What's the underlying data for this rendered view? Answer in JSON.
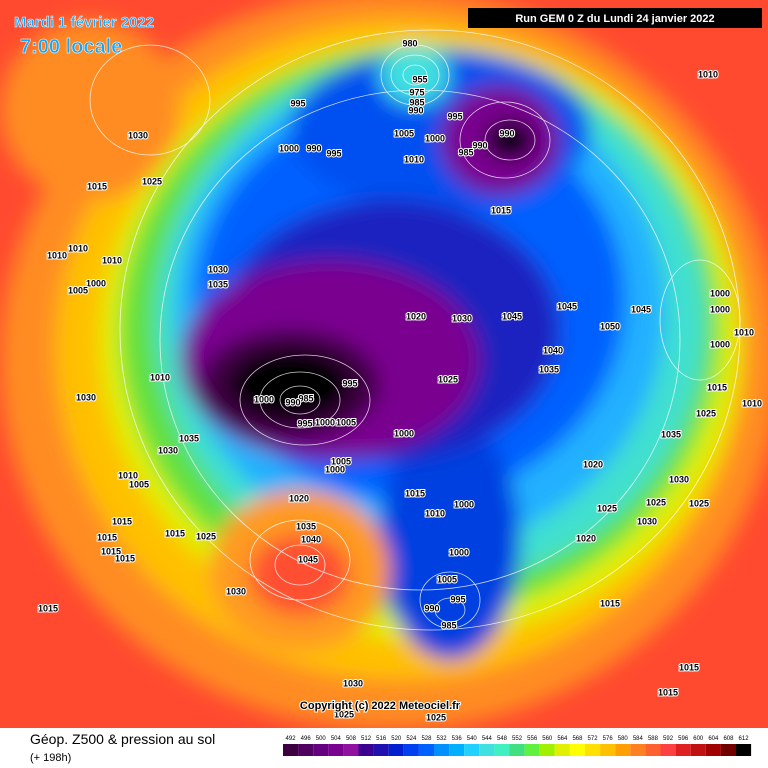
{
  "header": {
    "date": "Mardi 1 février 2022",
    "time": "7:00 locale",
    "run": "Run GEM 0 Z du Lundi 24 janvier 2022"
  },
  "copyright": "Copyright (c) 2022 Meteociel.fr",
  "footer": {
    "title": "Géop. Z500 & pression au sol",
    "lead": "(+ 198h)"
  },
  "legend": {
    "values": [
      492,
      496,
      500,
      504,
      508,
      512,
      516,
      520,
      524,
      528,
      532,
      536,
      540,
      544,
      548,
      552,
      556,
      560,
      564,
      568,
      572,
      576,
      580,
      584,
      588,
      592,
      596,
      600,
      604,
      608,
      612
    ],
    "colors": [
      "#3c0040",
      "#500060",
      "#640080",
      "#7a0090",
      "#9010a0",
      "#3a0090",
      "#2010b0",
      "#0020d0",
      "#0040f0",
      "#0060ff",
      "#0090ff",
      "#00b0ff",
      "#20d0ff",
      "#40e0e0",
      "#40f0c0",
      "#40e080",
      "#60f040",
      "#a0f000",
      "#e0f000",
      "#ffff00",
      "#ffe000",
      "#ffc000",
      "#ffa000",
      "#ff8020",
      "#ff6030",
      "#ff4040",
      "#e02020",
      "#c01010",
      "#a00000",
      "#700000",
      "#000000"
    ]
  },
  "map_labels": [
    "980",
    "955",
    "975",
    "985",
    "990",
    "995",
    "990",
    "990",
    "985",
    "1010",
    "995",
    "1030",
    "1000",
    "990",
    "995",
    "1005",
    "1000",
    "1010",
    "1015",
    "1025",
    "1015",
    "1010",
    "1010",
    "1010",
    "1000",
    "1005",
    "1030",
    "1035",
    "1020",
    "1030",
    "1045",
    "1045",
    "1045",
    "1050",
    "1040",
    "1035",
    "1000",
    "1000",
    "1010",
    "1000",
    "1010",
    "995",
    "985",
    "1000",
    "990",
    "1000",
    "1005",
    "995",
    "1025",
    "1000",
    "1015",
    "1010",
    "1030",
    "1025",
    "1035",
    "1035",
    "1030",
    "1005",
    "1000",
    "1020",
    "1030",
    "1010",
    "1005",
    "1020",
    "1015",
    "1000",
    "1010",
    "1025",
    "1025",
    "1025",
    "1030",
    "1035",
    "1040",
    "1020",
    "1015",
    "1015",
    "1025",
    "1015",
    "1015",
    "1015",
    "1045",
    "1000",
    "1005",
    "995",
    "990",
    "985",
    "1030",
    "1015",
    "1015",
    "1015",
    "1015",
    "1030",
    "1025",
    "1025"
  ]
}
